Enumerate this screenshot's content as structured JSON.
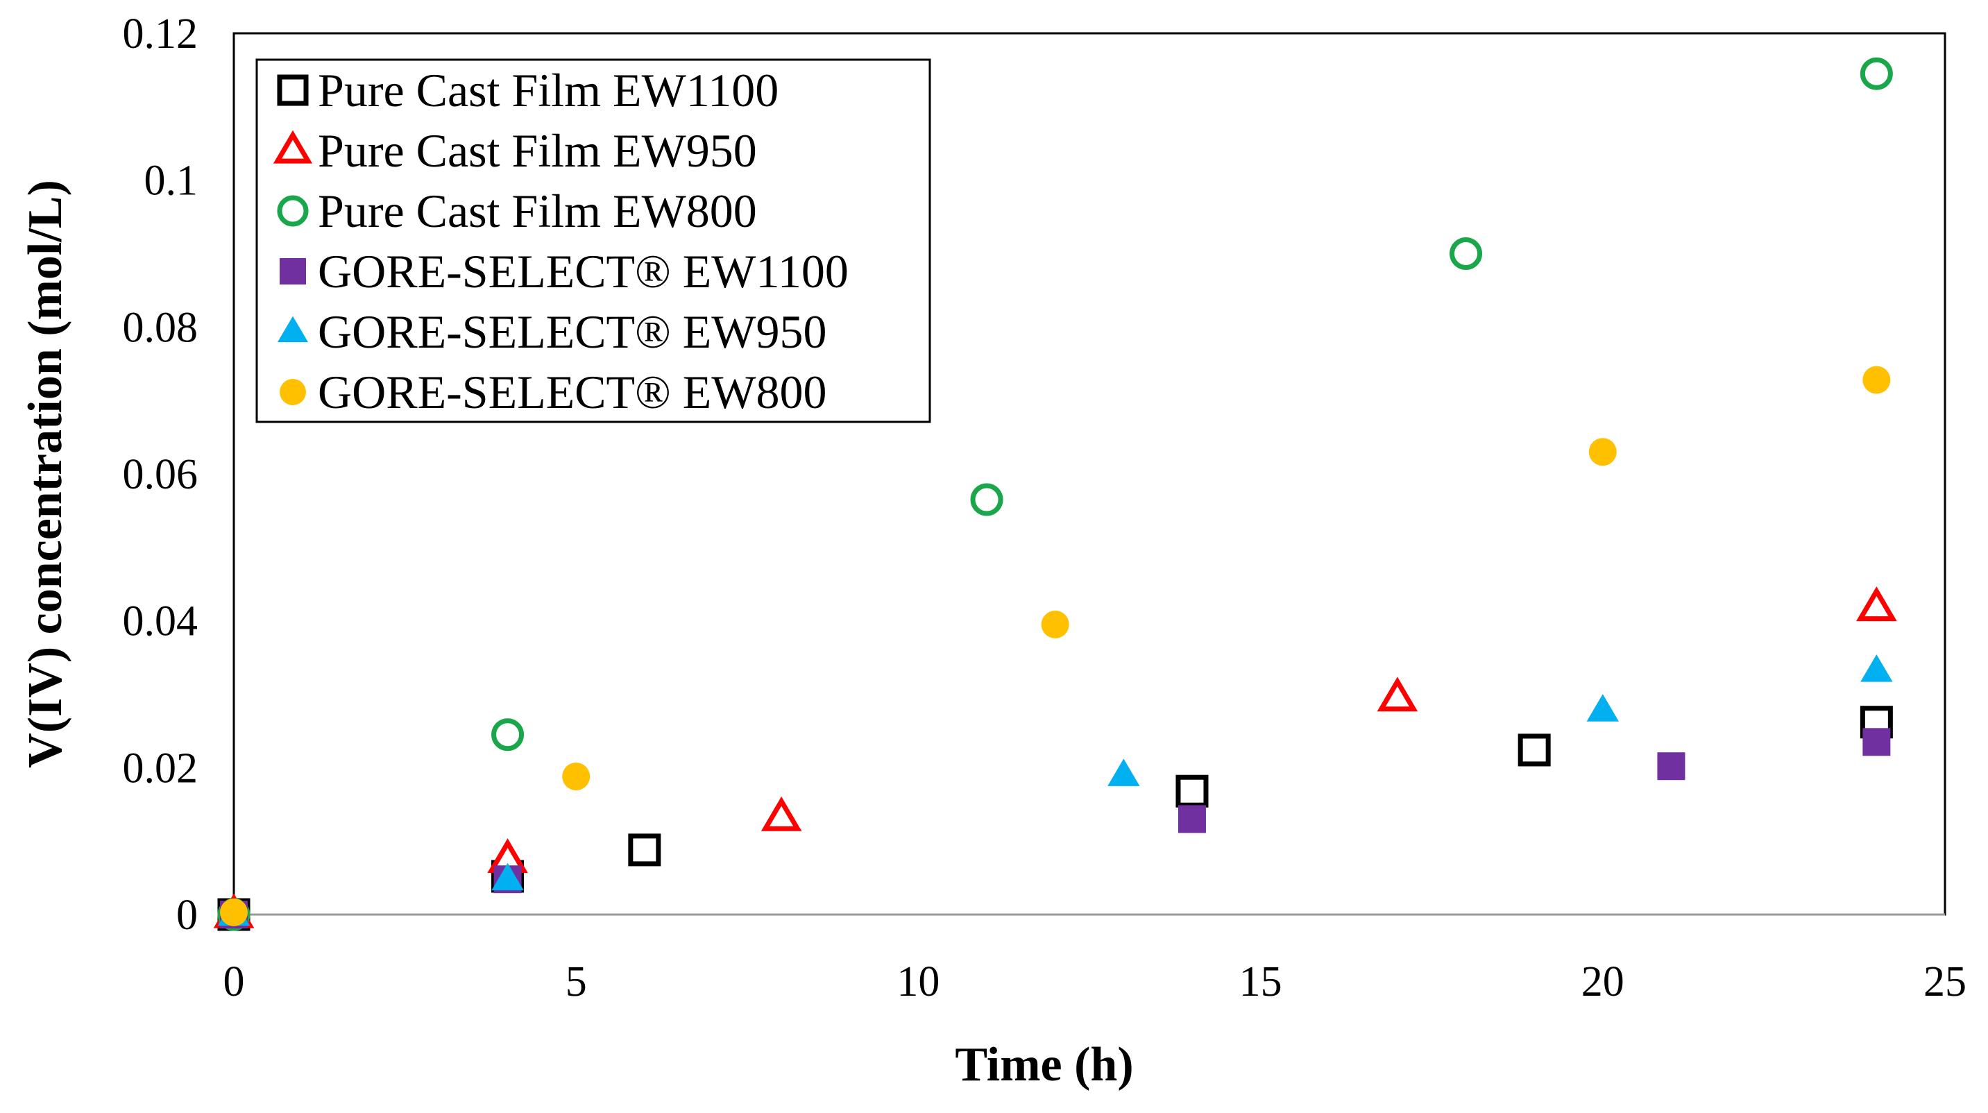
{
  "chart_data": {
    "type": "scatter",
    "title": "",
    "xlabel": "Time (h)",
    "ylabel": "V(IV) concentration (mol/L)",
    "xlim": [
      0,
      25
    ],
    "ylim": [
      0,
      0.12
    ],
    "x_ticks": [
      "0",
      "5",
      "10",
      "15",
      "20",
      "25"
    ],
    "y_ticks": [
      "0",
      "0.02",
      "0.04",
      "0.06",
      "0.08",
      "0.1",
      "0.12"
    ],
    "grid": false,
    "legend_position": "top-left",
    "series": [
      {
        "name": "Pure Cast Film EW1100",
        "marker": "square-open",
        "color": "#000000",
        "points": [
          [
            0,
            0
          ],
          [
            4,
            0.0052
          ],
          [
            6,
            0.0088
          ],
          [
            14,
            0.0168
          ],
          [
            19,
            0.0224
          ],
          [
            24,
            0.0262
          ]
        ]
      },
      {
        "name": "Pure Cast Film EW950",
        "marker": "triangle-open",
        "color": "#ff0000",
        "points": [
          [
            0,
            0
          ],
          [
            4,
            0.0075
          ],
          [
            8,
            0.0132
          ],
          [
            17,
            0.0295
          ],
          [
            24,
            0.0418
          ]
        ]
      },
      {
        "name": "Pure Cast Film EW800",
        "marker": "circle-open",
        "color": "#1aa64a",
        "points": [
          [
            0,
            0
          ],
          [
            4,
            0.0245
          ],
          [
            11,
            0.0565
          ],
          [
            18,
            0.09
          ],
          [
            24,
            0.1145
          ]
        ]
      },
      {
        "name": "GORE-SELECT® EW1100",
        "marker": "square-filled",
        "color": "#7030a0",
        "points": [
          [
            0,
            0
          ],
          [
            4,
            0.0048
          ],
          [
            14,
            0.013
          ],
          [
            21,
            0.0202
          ],
          [
            24,
            0.0235
          ]
        ]
      },
      {
        "name": "GORE-SELECT® EW950",
        "marker": "triangle-filled",
        "color": "#00b0f0",
        "points": [
          [
            0,
            0
          ],
          [
            4,
            0.0048
          ],
          [
            13,
            0.019
          ],
          [
            20,
            0.0278
          ],
          [
            24,
            0.0332
          ]
        ]
      },
      {
        "name": "GORE-SELECT® EW800",
        "marker": "circle-filled",
        "color": "#ffc000",
        "points": [
          [
            0,
            0.0003
          ],
          [
            5,
            0.0188
          ],
          [
            12,
            0.0395
          ],
          [
            20,
            0.063
          ],
          [
            24,
            0.0728
          ]
        ]
      }
    ]
  }
}
